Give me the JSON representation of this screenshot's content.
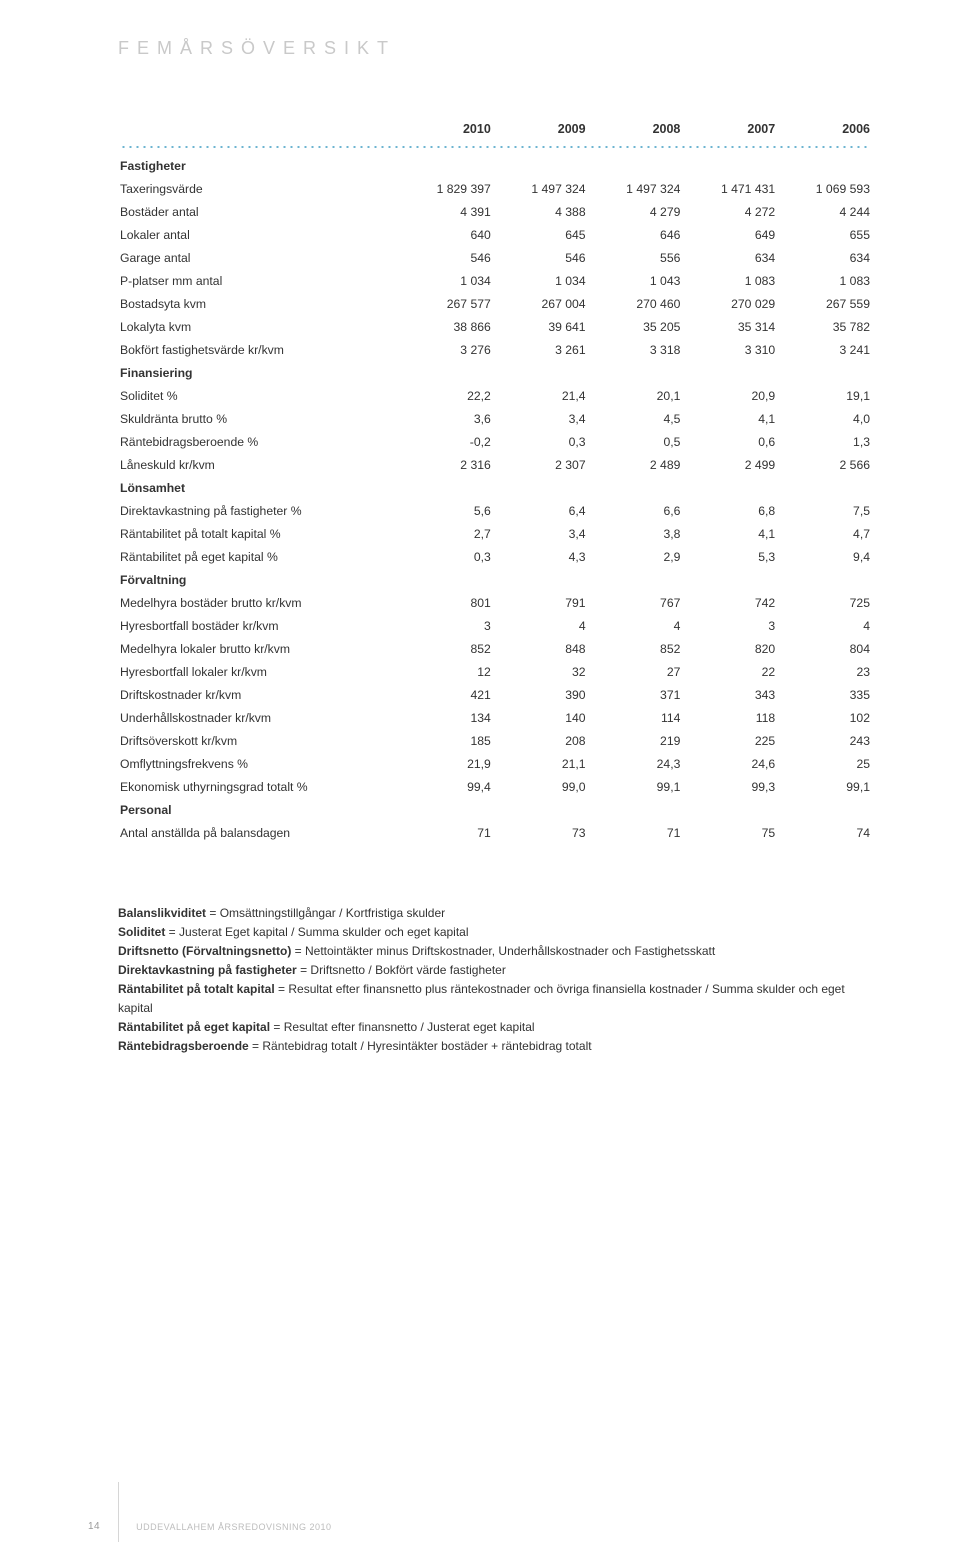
{
  "title": "FEMÅRSÖVERSIKT",
  "years": [
    "2010",
    "2009",
    "2008",
    "2007",
    "2006"
  ],
  "sections": [
    {
      "name": "Fastigheter",
      "rows": [
        {
          "label": "Taxeringsvärde",
          "v": [
            "1 829 397",
            "1 497 324",
            "1 497 324",
            "1 471 431",
            "1 069 593"
          ]
        },
        {
          "label": "Bostäder antal",
          "v": [
            "4 391",
            "4 388",
            "4 279",
            "4 272",
            "4 244"
          ]
        },
        {
          "label": "Lokaler antal",
          "v": [
            "640",
            "645",
            "646",
            "649",
            "655"
          ]
        },
        {
          "label": "Garage antal",
          "v": [
            "546",
            "546",
            "556",
            "634",
            "634"
          ]
        },
        {
          "label": "P-platser mm antal",
          "v": [
            "1 034",
            "1 034",
            "1 043",
            "1 083",
            "1 083"
          ]
        },
        {
          "label": "Bostadsyta kvm",
          "v": [
            "267 577",
            "267 004",
            "270 460",
            "270 029",
            "267 559"
          ]
        },
        {
          "label": "Lokalyta kvm",
          "v": [
            "38 866",
            "39 641",
            "35 205",
            "35 314",
            "35 782"
          ]
        },
        {
          "label": "Bokfört fastighetsvärde kr/kvm",
          "v": [
            "3 276",
            "3 261",
            "3 318",
            "3 310",
            "3 241"
          ]
        }
      ]
    },
    {
      "name": "Finansiering",
      "rows": [
        {
          "label": "Soliditet  %",
          "v": [
            "22,2",
            "21,4",
            "20,1",
            "20,9",
            "19,1"
          ]
        },
        {
          "label": "Skuldränta brutto %",
          "v": [
            "3,6",
            "3,4",
            "4,5",
            "4,1",
            "4,0"
          ]
        },
        {
          "label": "Räntebidragsberoende %",
          "v": [
            "-0,2",
            "0,3",
            "0,5",
            "0,6",
            "1,3"
          ]
        },
        {
          "label": "Låneskuld kr/kvm",
          "v": [
            "2 316",
            "2 307",
            "2 489",
            "2 499",
            "2 566"
          ]
        }
      ]
    },
    {
      "name": "Lönsamhet",
      "rows": [
        {
          "label": "Direktavkastning på fastigheter %",
          "v": [
            "5,6",
            "6,4",
            "6,6",
            "6,8",
            "7,5"
          ]
        },
        {
          "label": "Räntabilitet på totalt kapital %",
          "v": [
            "2,7",
            "3,4",
            "3,8",
            "4,1",
            "4,7"
          ]
        },
        {
          "label": "Räntabilitet på eget kapital %",
          "v": [
            "0,3",
            "4,3",
            "2,9",
            "5,3",
            "9,4"
          ]
        }
      ]
    },
    {
      "name": "Förvaltning",
      "rows": [
        {
          "label": "Medelhyra bostäder brutto kr/kvm",
          "v": [
            "801",
            "791",
            "767",
            "742",
            "725"
          ]
        },
        {
          "label": "Hyresbortfall bostäder kr/kvm",
          "v": [
            "3",
            "4",
            "4",
            "3",
            "4"
          ]
        },
        {
          "label": "Medelhyra lokaler brutto kr/kvm",
          "v": [
            "852",
            "848",
            "852",
            "820",
            "804"
          ]
        },
        {
          "label": "Hyresbortfall lokaler kr/kvm",
          "v": [
            "12",
            "32",
            "27",
            "22",
            "23"
          ]
        },
        {
          "label": "Driftskostnader kr/kvm",
          "v": [
            "421",
            "390",
            "371",
            "343",
            "335"
          ]
        },
        {
          "label": "Underhållskostnader kr/kvm",
          "v": [
            "134",
            "140",
            "114",
            "118",
            "102"
          ]
        },
        {
          "label": "Driftsöverskott kr/kvm",
          "v": [
            "185",
            "208",
            "219",
            "225",
            "243"
          ]
        },
        {
          "label": "Omflyttningsfrekvens %",
          "v": [
            "21,9",
            "21,1",
            "24,3",
            "24,6",
            "25"
          ]
        },
        {
          "label": "Ekonomisk uthyrningsgrad totalt %",
          "v": [
            "99,4",
            "99,0",
            "99,1",
            "99,3",
            "99,1"
          ]
        }
      ]
    },
    {
      "name": "Personal",
      "rows": [
        {
          "label": "Antal anställda på balansdagen",
          "v": [
            "71",
            "73",
            "71",
            "75",
            "74"
          ]
        }
      ]
    }
  ],
  "defs": [
    {
      "t": "Balanslikviditet",
      "d": "  = Omsättningstillgångar / Kortfristiga skulder"
    },
    {
      "t": "Soliditet",
      "d": " = Justerat Eget kapital / Summa skulder och eget kapital"
    },
    {
      "t": "Driftsnetto (Förvaltningsnetto)",
      "d": " = Nettointäkter minus Driftskostnader, Underhållskostnader och Fastighetsskatt"
    },
    {
      "t": "Direktavkastning på fastigheter",
      "d": " = Driftsnetto / Bokfört värde fastigheter"
    },
    {
      "t": "Räntabilitet på totalt kapital",
      "d": " = Resultat efter finansnetto plus räntekostnader och övriga finansiella kostnader / Summa skulder och eget kapital"
    },
    {
      "t": "Räntabilitet på eget kapital",
      "d": " = Resultat efter finansnetto / Justerat eget kapital"
    },
    {
      "t": "Räntebidragsberoende",
      "d": " = Räntebidrag  totalt / Hyresintäkter bostäder + räntebidrag totalt"
    }
  ],
  "footer": {
    "page": "14",
    "text": "UDDEVALLAHEM ÅRSREDOVISNING 2010"
  }
}
